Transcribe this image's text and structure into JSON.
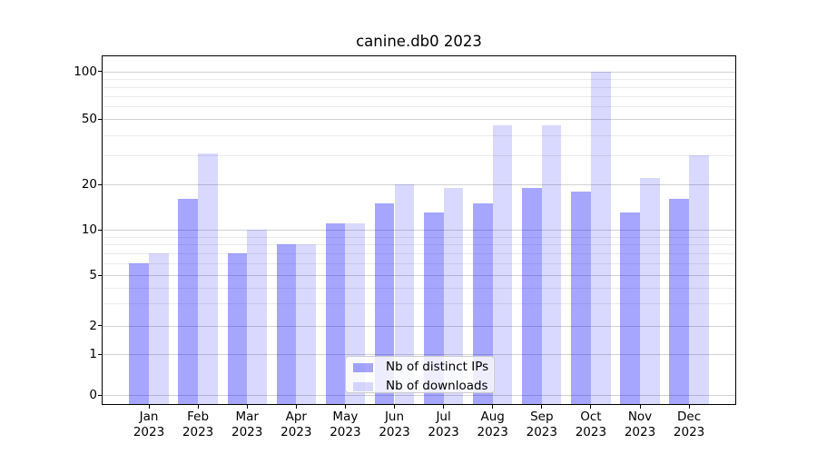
{
  "chart_data": {
    "type": "bar",
    "title": "canine.db0 2023",
    "categories": [
      "Jan",
      "Feb",
      "Mar",
      "Apr",
      "May",
      "Jun",
      "Jul",
      "Aug",
      "Sep",
      "Oct",
      "Nov",
      "Dec"
    ],
    "category_year": "2023",
    "series": [
      {
        "name": "Nb of distinct IPs",
        "color": "rgba(0,0,255,0.35)",
        "values": [
          6,
          16,
          7,
          8,
          11,
          15,
          13,
          15,
          19,
          18,
          13,
          16
        ]
      },
      {
        "name": "Nb of downloads",
        "color": "rgba(0,0,255,0.15)",
        "values": [
          7,
          31,
          10,
          8,
          11,
          20,
          19,
          46,
          46,
          100,
          22,
          30
        ]
      }
    ],
    "y_axis": {
      "scale": "symlog-like",
      "ticks": [
        0,
        1,
        2,
        5,
        10,
        20,
        50,
        100
      ],
      "minor_ticks": [
        3,
        4,
        6,
        7,
        8,
        9,
        30,
        40,
        60,
        70,
        80,
        90
      ],
      "range_top": 125
    },
    "legend": {
      "position": "lower center"
    },
    "grid": true,
    "colors": {
      "grid_major": "#d2d2d2",
      "grid_minor": "#ebebeb",
      "spine": "#000000",
      "background": "#ffffff"
    }
  }
}
